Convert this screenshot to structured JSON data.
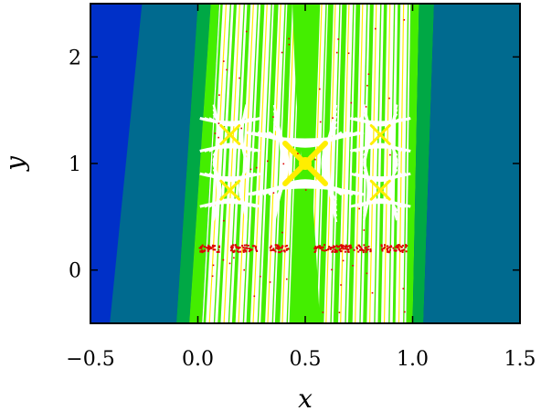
{
  "chart_data": {
    "type": "heatmap",
    "title": "",
    "xlabel": "x",
    "ylabel": "y",
    "xlim": [
      -0.5,
      1.5
    ],
    "ylim": [
      -0.5,
      2.5
    ],
    "x_ticks": [
      {
        "value": -0.5,
        "label": "−0.5"
      },
      {
        "value": 0.0,
        "label": "0.0"
      },
      {
        "value": 0.5,
        "label": "0.5"
      },
      {
        "value": 1.0,
        "label": "1.0"
      },
      {
        "value": 1.5,
        "label": "1.5"
      }
    ],
    "y_ticks": [
      {
        "value": 0,
        "label": "0"
      },
      {
        "value": 1,
        "label": "1"
      },
      {
        "value": 2,
        "label": "2"
      }
    ],
    "grid": false,
    "legend": "none",
    "colors": {
      "navy": "#0030c8",
      "teal": "#006a8f",
      "green": "#00a845",
      "lime": "#44ee00",
      "yellow": "#ffee00",
      "white": "#ffffff",
      "red": "#dd0000"
    },
    "regions": [
      {
        "name": "outer-left",
        "color": "navy",
        "bottom": [
          -0.5,
          -0.41
        ],
        "top": [
          -0.5,
          -0.26
        ]
      },
      {
        "name": "left-band",
        "color": "teal",
        "bottom": [
          -0.41,
          -0.1
        ],
        "top": [
          -0.26,
          0.0
        ]
      },
      {
        "name": "left-edge",
        "color": "green",
        "bottom": [
          -0.1,
          -0.04
        ],
        "top": [
          0.0,
          0.06
        ]
      },
      {
        "name": "left-lime",
        "color": "lime",
        "bottom": [
          -0.04,
          0.02
        ],
        "top": [
          0.06,
          0.1
        ]
      },
      {
        "name": "right-lime",
        "color": "lime",
        "bottom": [
          0.97,
          1.0
        ],
        "top": [
          0.99,
          1.03
        ]
      },
      {
        "name": "right-edge",
        "color": "green",
        "bottom": [
          1.0,
          1.05
        ],
        "top": [
          1.03,
          1.1
        ]
      },
      {
        "name": "right-band",
        "color": "teal",
        "bottom": [
          1.05,
          1.5
        ],
        "top": [
          1.1,
          1.5
        ]
      }
    ],
    "stripe_region": {
      "bottom": [
        0.02,
        0.97
      ],
      "top": [
        0.1,
        0.99
      ],
      "stripe_count": 42
    },
    "central_band": {
      "x": 0.5,
      "y_range": [
        -0.5,
        2.5
      ]
    },
    "saddle_centers": [
      {
        "x": 0.5,
        "y": 1.0
      },
      {
        "x": 0.15,
        "y": 1.27
      },
      {
        "x": 0.85,
        "y": 1.27
      },
      {
        "x": 0.15,
        "y": 0.75
      },
      {
        "x": 0.85,
        "y": 0.75
      }
    ],
    "red_band": {
      "y": 0.21,
      "x_segments": [
        [
          0.0,
          0.1
        ],
        [
          0.15,
          0.28
        ],
        [
          0.33,
          0.42
        ],
        [
          0.54,
          0.81
        ],
        [
          0.85,
          0.97
        ]
      ]
    }
  }
}
